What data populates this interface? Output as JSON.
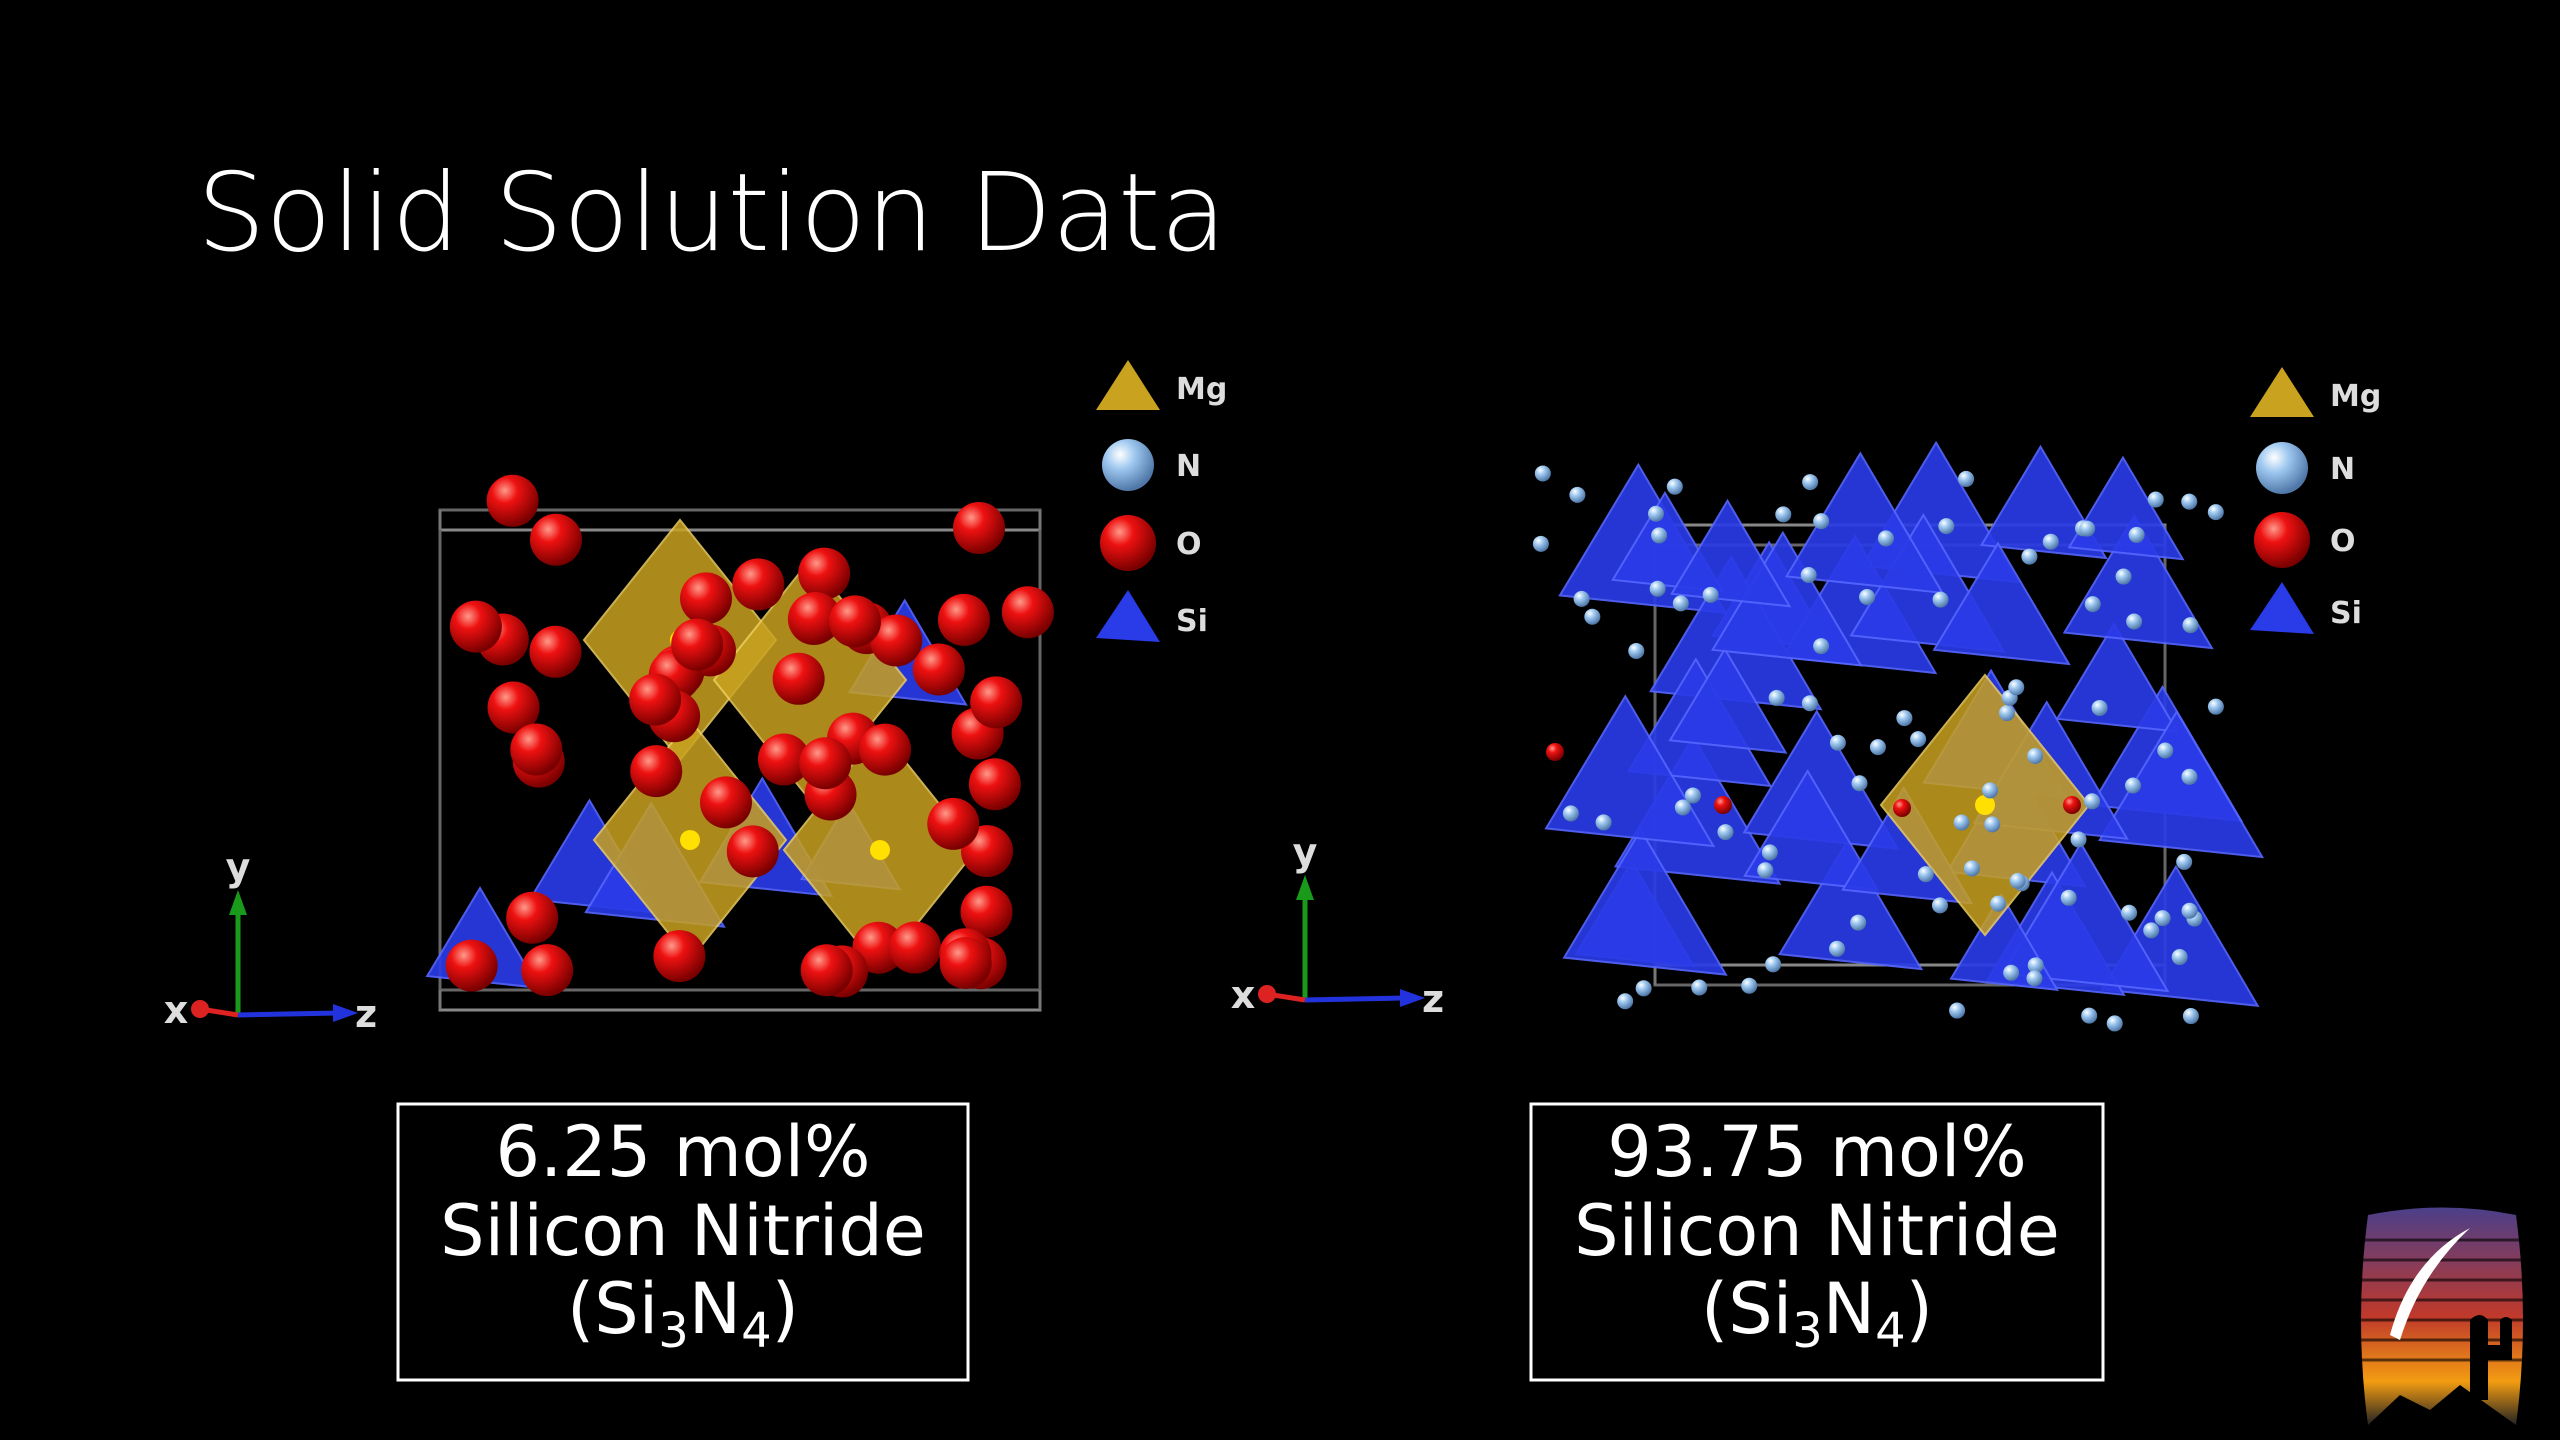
{
  "header": {
    "title": "Solid Solution Data"
  },
  "panels": [
    {
      "legend": [
        "Mg",
        "N",
        "O",
        "Si"
      ],
      "axes": [
        "y",
        "x",
        "z"
      ],
      "caption": {
        "line1": "6.25 mol%",
        "line2": "Silicon Nitride",
        "formula": [
          "(Si",
          "3",
          "N",
          "4",
          ")"
        ]
      }
    },
    {
      "legend": [
        "Mg",
        "N",
        "O",
        "Si"
      ],
      "axes": [
        "y",
        "x",
        "z"
      ],
      "caption": {
        "line1": "93.75 mol%",
        "line2": "Silicon Nitride",
        "formula": [
          "(Si",
          "3",
          "N",
          "4",
          ")"
        ]
      }
    }
  ]
}
